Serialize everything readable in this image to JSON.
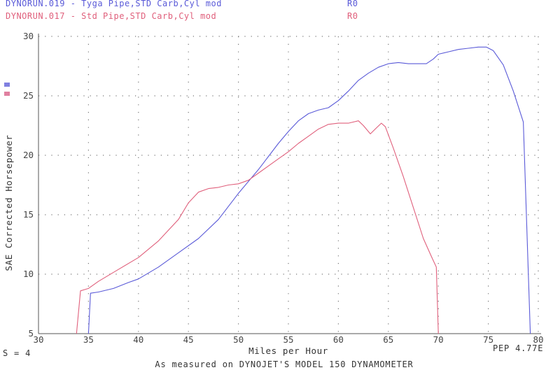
{
  "header": {
    "run1": {
      "name": "DYNORUN.019 - Tyga Pipe,STD Carb,Cyl mod",
      "code": "R0",
      "color": "#5a5ad8"
    },
    "run2": {
      "name": "DYNORUN.017 - Std Pipe,STD Carb,Cyl mod",
      "code": "R0",
      "color": "#e0607c"
    }
  },
  "footer": {
    "smoothing": "S = 4",
    "pep": "PEP 4.77E",
    "caption": "As measured on DYNOJET'S MODEL 150 DYNAMOMETER"
  },
  "chart_data": {
    "type": "line",
    "xlabel": "Miles per Hour",
    "ylabel": "SAE Corrected Horsepower",
    "xlim": [
      30,
      80
    ],
    "ylim": [
      5,
      30
    ],
    "xticks": [
      "30",
      "35",
      "40",
      "45",
      "50",
      "55",
      "60",
      "65",
      "70",
      "75",
      "80"
    ],
    "yticks": [
      "5",
      "10",
      "15",
      "20",
      "25",
      "30"
    ],
    "grid": true,
    "series": [
      {
        "color": "#5a5ad8",
        "points": [
          [
            35.0,
            5.0
          ],
          [
            35.2,
            8.4
          ],
          [
            36,
            8.5
          ],
          [
            37.5,
            8.8
          ],
          [
            39,
            9.3
          ],
          [
            40,
            9.6
          ],
          [
            42,
            10.6
          ],
          [
            44,
            11.8
          ],
          [
            46,
            13.0
          ],
          [
            48,
            14.6
          ],
          [
            50,
            16.8
          ],
          [
            52,
            18.8
          ],
          [
            54,
            21.0
          ],
          [
            55,
            22.0
          ],
          [
            56,
            22.9
          ],
          [
            57,
            23.5
          ],
          [
            58,
            23.8
          ],
          [
            59,
            24.0
          ],
          [
            60,
            24.6
          ],
          [
            61,
            25.4
          ],
          [
            62,
            26.3
          ],
          [
            63,
            26.9
          ],
          [
            64,
            27.4
          ],
          [
            65,
            27.7
          ],
          [
            66,
            27.8
          ],
          [
            67,
            27.7
          ],
          [
            68,
            27.7
          ],
          [
            68.8,
            27.7
          ],
          [
            69.5,
            28.1
          ],
          [
            70,
            28.5
          ],
          [
            71,
            28.7
          ],
          [
            72,
            28.9
          ],
          [
            73,
            29.0
          ],
          [
            74,
            29.1
          ],
          [
            74.8,
            29.1
          ],
          [
            75.5,
            28.8
          ],
          [
            76.5,
            27.6
          ],
          [
            77.5,
            25.4
          ],
          [
            78.5,
            22.8
          ],
          [
            79.2,
            5.0
          ]
        ]
      },
      {
        "color": "#e0607c",
        "points": [
          [
            33.8,
            5.0
          ],
          [
            34.2,
            8.6
          ],
          [
            35,
            8.8
          ],
          [
            36,
            9.4
          ],
          [
            38,
            10.4
          ],
          [
            40,
            11.4
          ],
          [
            42,
            12.8
          ],
          [
            44,
            14.6
          ],
          [
            45,
            16.0
          ],
          [
            46,
            16.9
          ],
          [
            47,
            17.2
          ],
          [
            48,
            17.3
          ],
          [
            49,
            17.5
          ],
          [
            50,
            17.6
          ],
          [
            51,
            17.9
          ],
          [
            52,
            18.5
          ],
          [
            53,
            19.1
          ],
          [
            54,
            19.7
          ],
          [
            55,
            20.3
          ],
          [
            56,
            21.0
          ],
          [
            57,
            21.6
          ],
          [
            58,
            22.2
          ],
          [
            59,
            22.6
          ],
          [
            60,
            22.7
          ],
          [
            61,
            22.7
          ],
          [
            62,
            22.9
          ],
          [
            62.5,
            22.5
          ],
          [
            63.2,
            21.8
          ],
          [
            63.8,
            22.3
          ],
          [
            64.3,
            22.7
          ],
          [
            64.7,
            22.4
          ],
          [
            65.5,
            20.6
          ],
          [
            66.5,
            18.2
          ],
          [
            67.5,
            15.6
          ],
          [
            68.5,
            13.0
          ],
          [
            69.3,
            11.5
          ],
          [
            69.8,
            10.6
          ],
          [
            70.0,
            5.0
          ]
        ]
      }
    ]
  }
}
